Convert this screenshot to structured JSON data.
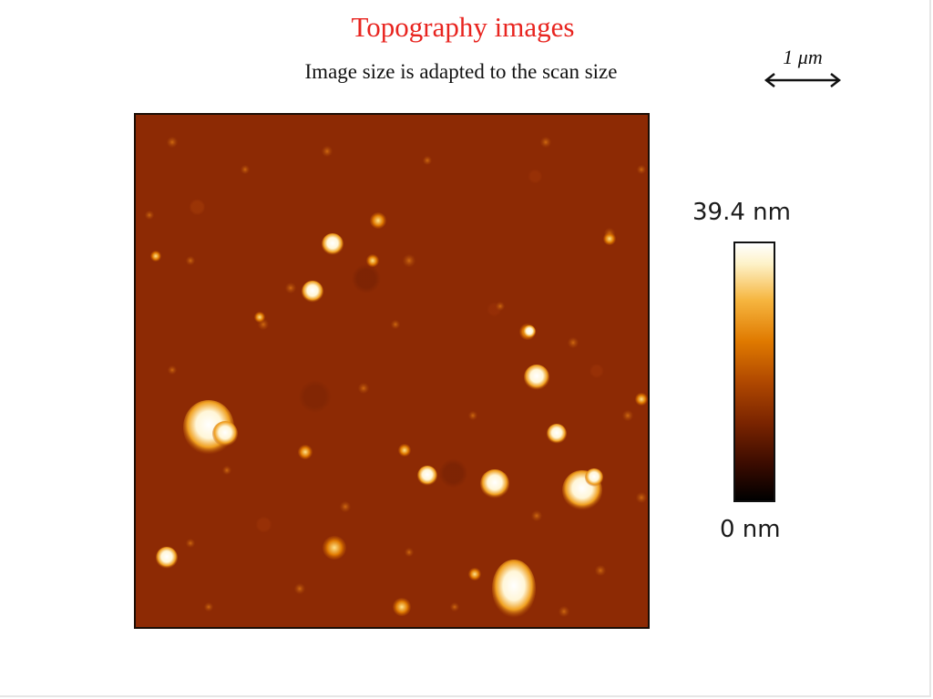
{
  "slide": {
    "title": "Topography images",
    "subtitle": "Image size is adapted to the scan size",
    "title_color": "#e8241f"
  },
  "scale_bar": {
    "label": "1 μm",
    "icon": "double-arrow-icon"
  },
  "afm_image": {
    "colormap": "afmhot",
    "background_color": "#8d2a04",
    "feature_color": "#ffffff"
  },
  "color_scale": {
    "max_label": "39.4 nm",
    "min_label": "0 nm",
    "colors": [
      "#000000",
      "#7a2400",
      "#e07a00",
      "#fdf2c8",
      "#ffffff"
    ]
  }
}
